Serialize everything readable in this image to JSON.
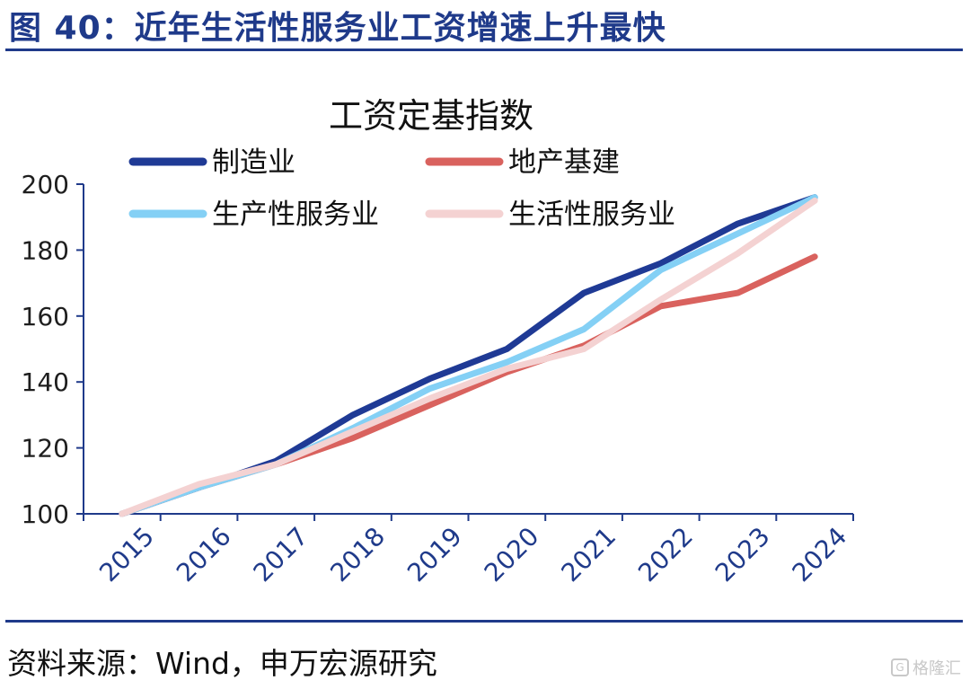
{
  "header": {
    "title": "图 40：近年生活性服务业工资增速上升最快"
  },
  "footer": {
    "source": "资料来源：Wind，申万宏源研究",
    "watermark": "格隆汇"
  },
  "chart_data": {
    "type": "line",
    "title": "工资定基指数",
    "xlabel": "",
    "ylabel": "",
    "x": [
      "2015",
      "2016",
      "2017",
      "2018",
      "2019",
      "2020",
      "2021",
      "2022",
      "2023",
      "2024"
    ],
    "yticks": [
      "100",
      "120",
      "140",
      "160",
      "180",
      "200"
    ],
    "ylim": [
      100,
      200
    ],
    "grid": false,
    "legend_position": "top",
    "series": [
      {
        "name": "制造业",
        "color": "#1f3a95",
        "values": [
          100,
          108,
          116,
          130,
          141,
          150,
          167,
          176,
          188,
          196
        ]
      },
      {
        "name": "地产基建",
        "color": "#d9625e",
        "values": [
          100,
          108,
          115,
          123,
          133,
          143,
          151,
          163,
          167,
          178
        ]
      },
      {
        "name": "生产性服务业",
        "color": "#84d0f5",
        "values": [
          100,
          108,
          115,
          126,
          138,
          146,
          156,
          174,
          185,
          196
        ]
      },
      {
        "name": "生活性服务业",
        "color": "#f4d2d2",
        "values": [
          100,
          109,
          115,
          125,
          135,
          144,
          150,
          165,
          179,
          195
        ]
      }
    ]
  }
}
